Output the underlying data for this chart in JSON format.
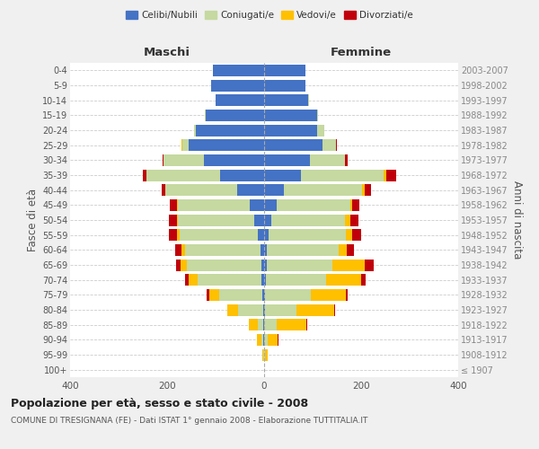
{
  "age_groups": [
    "100+",
    "95-99",
    "90-94",
    "85-89",
    "80-84",
    "75-79",
    "70-74",
    "65-69",
    "60-64",
    "55-59",
    "50-54",
    "45-49",
    "40-44",
    "35-39",
    "30-34",
    "25-29",
    "20-24",
    "15-19",
    "10-14",
    "5-9",
    "0-4"
  ],
  "birth_years": [
    "≤ 1907",
    "1908-1912",
    "1913-1917",
    "1918-1922",
    "1923-1927",
    "1928-1932",
    "1933-1937",
    "1938-1942",
    "1943-1947",
    "1948-1952",
    "1953-1957",
    "1958-1962",
    "1963-1967",
    "1968-1972",
    "1973-1977",
    "1978-1982",
    "1983-1987",
    "1988-1992",
    "1993-1997",
    "1998-2002",
    "2003-2007"
  ],
  "males": {
    "celibi": [
      0,
      0,
      1,
      1,
      2,
      3,
      5,
      5,
      8,
      13,
      20,
      30,
      55,
      90,
      125,
      155,
      140,
      120,
      100,
      110,
      105
    ],
    "coniugati": [
      0,
      2,
      5,
      12,
      52,
      90,
      132,
      155,
      155,
      162,
      158,
      148,
      148,
      152,
      82,
      14,
      4,
      2,
      0,
      0,
      0
    ],
    "vedovi": [
      0,
      2,
      8,
      18,
      22,
      20,
      18,
      12,
      8,
      5,
      2,
      2,
      0,
      0,
      0,
      2,
      0,
      0,
      0,
      0,
      0
    ],
    "divorziati": [
      0,
      0,
      0,
      0,
      0,
      5,
      8,
      10,
      13,
      16,
      16,
      14,
      8,
      8,
      3,
      0,
      0,
      0,
      0,
      0,
      0
    ]
  },
  "females": {
    "nubili": [
      0,
      0,
      0,
      0,
      2,
      2,
      3,
      5,
      5,
      10,
      15,
      25,
      40,
      75,
      95,
      120,
      110,
      110,
      90,
      85,
      85
    ],
    "coniugate": [
      0,
      2,
      8,
      25,
      65,
      95,
      125,
      135,
      148,
      158,
      152,
      152,
      162,
      172,
      72,
      28,
      14,
      2,
      2,
      0,
      0
    ],
    "vedove": [
      0,
      5,
      20,
      62,
      78,
      72,
      72,
      68,
      18,
      14,
      10,
      5,
      5,
      5,
      0,
      0,
      0,
      0,
      0,
      0,
      0
    ],
    "divorziate": [
      0,
      0,
      2,
      2,
      2,
      3,
      10,
      18,
      14,
      18,
      18,
      14,
      14,
      20,
      5,
      2,
      0,
      0,
      0,
      0,
      0
    ]
  },
  "colors": {
    "celibi": "#4472c4",
    "coniugati": "#c5d9a0",
    "vedovi": "#ffc000",
    "divorziati": "#c0000b"
  },
  "title": "Popolazione per età, sesso e stato civile - 2008",
  "subtitle": "COMUNE DI TRESIGNANA (FE) - Dati ISTAT 1° gennaio 2008 - Elaborazione TUTTITALIA.IT",
  "xlabel_left": "Maschi",
  "xlabel_right": "Femmine",
  "ylabel_left": "Fasce di età",
  "ylabel_right": "Anni di nascita",
  "xlim": 400,
  "legend_labels": [
    "Celibi/Nubili",
    "Coniugati/e",
    "Vedovi/e",
    "Divorziati/e"
  ],
  "bg_color": "#f0f0f0",
  "plot_bg": "#ffffff",
  "grid_color": "#cccccc"
}
